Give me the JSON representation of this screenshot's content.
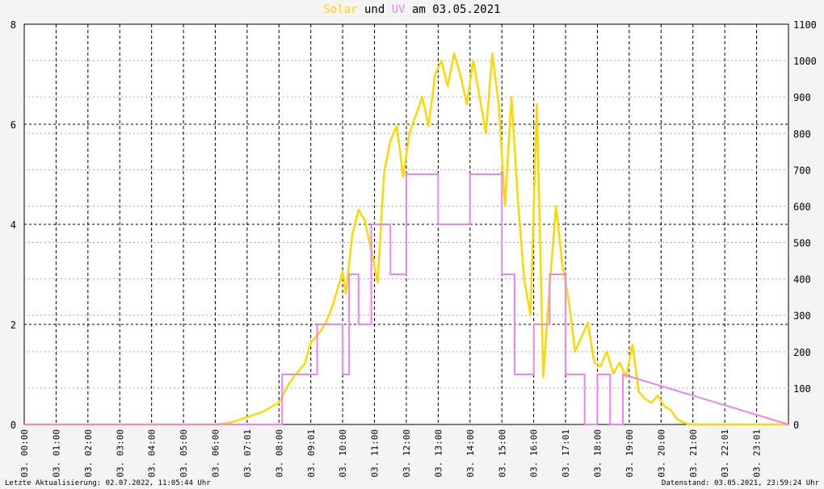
{
  "title": {
    "part1": "Solar",
    "part2": " und ",
    "part3": "UV",
    "part4": " am 03.05.2021",
    "color_solar": "#ffd700",
    "color_uv": "#ee82ee"
  },
  "footer": {
    "left": "Letzte Aktualisierung: 02.07.2022, 11:05:44 Uhr",
    "right": "Datenstand: 03.05.2021, 23:59:24 Uhr"
  },
  "chart_data": {
    "type": "line",
    "title": "Solar und UV am 03.05.2021",
    "x_tick_labels": [
      "03. 00:00",
      "03. 01:00",
      "03. 02:00",
      "03. 03:00",
      "03. 04:00",
      "03. 05:00",
      "03. 06:00",
      "03. 07:01",
      "03. 08:00",
      "03. 09:01",
      "03. 10:00",
      "03. 11:00",
      "03. 12:00",
      "03. 13:00",
      "03. 14:00",
      "03. 15:00",
      "03. 16:00",
      "03. 17:01",
      "03. 18:00",
      "03. 19:00",
      "03. 20:00",
      "03. 21:00",
      "03. 22:01",
      "03. 23:01"
    ],
    "xlim_hours": [
      0,
      24
    ],
    "y_left": {
      "label": "",
      "range": [
        0,
        8
      ],
      "ticks": [
        0,
        2,
        4,
        6,
        8
      ]
    },
    "y_right": {
      "label": "",
      "range": [
        0,
        1100
      ],
      "ticks": [
        0,
        100,
        200,
        300,
        400,
        500,
        600,
        700,
        800,
        900,
        1000,
        1100
      ]
    },
    "grid": true,
    "series": [
      {
        "name": "Solar",
        "axis": "right",
        "color": "#ffd700",
        "x_hours": [
          0,
          6,
          6.5,
          7,
          7.5,
          8,
          8.3,
          8.5,
          8.8,
          9,
          9.3,
          9.5,
          9.7,
          9.9,
          10,
          10.1,
          10.3,
          10.5,
          10.7,
          10.9,
          11.1,
          11.3,
          11.5,
          11.7,
          11.9,
          12.1,
          12.3,
          12.5,
          12.7,
          12.9,
          13.1,
          13.3,
          13.5,
          13.7,
          13.9,
          14.1,
          14.3,
          14.5,
          14.7,
          14.9,
          15.1,
          15.3,
          15.5,
          15.7,
          15.9,
          16.1,
          16.3,
          16.5,
          16.7,
          16.9,
          17.1,
          17.3,
          17.5,
          17.7,
          17.9,
          18.1,
          18.3,
          18.5,
          18.7,
          18.9,
          19.1,
          19.3,
          19.5,
          19.7,
          19.9,
          20.1,
          20.3,
          20.5,
          20.7,
          20.9,
          21,
          24
        ],
        "values": [
          0,
          0,
          5,
          20,
          35,
          60,
          110,
          135,
          165,
          225,
          255,
          285,
          330,
          390,
          420,
          360,
          520,
          590,
          560,
          480,
          390,
          690,
          780,
          820,
          680,
          800,
          850,
          900,
          820,
          960,
          1000,
          930,
          1020,
          960,
          880,
          1000,
          900,
          800,
          1020,
          880,
          600,
          900,
          620,
          400,
          300,
          880,
          130,
          380,
          600,
          440,
          340,
          200,
          240,
          280,
          170,
          160,
          200,
          140,
          170,
          130,
          220,
          90,
          70,
          60,
          80,
          50,
          40,
          15,
          5,
          0,
          0,
          0
        ]
      },
      {
        "name": "UV",
        "axis": "left",
        "color": "#ee82ee",
        "x_hours": [
          0,
          8.1,
          8.1,
          9.2,
          9.2,
          10,
          10,
          10.2,
          10.2,
          10.5,
          10.5,
          10.9,
          10.9,
          11.5,
          11.5,
          12,
          12,
          13,
          13,
          14,
          14,
          15,
          15,
          15.4,
          15.4,
          16,
          16,
          16.5,
          16.5,
          17,
          17,
          17.6,
          17.6,
          18,
          18,
          18.4,
          18.4,
          18.8,
          18.8,
          24
        ],
        "values": [
          0,
          0,
          1,
          1,
          2,
          2,
          1,
          1,
          3,
          3,
          2,
          2,
          4,
          4,
          3,
          3,
          5,
          5,
          4,
          4,
          5,
          5,
          3,
          3,
          1,
          1,
          2,
          2,
          3,
          3,
          1,
          1,
          0,
          0,
          1,
          1,
          0,
          0,
          1,
          0
        ]
      }
    ]
  }
}
